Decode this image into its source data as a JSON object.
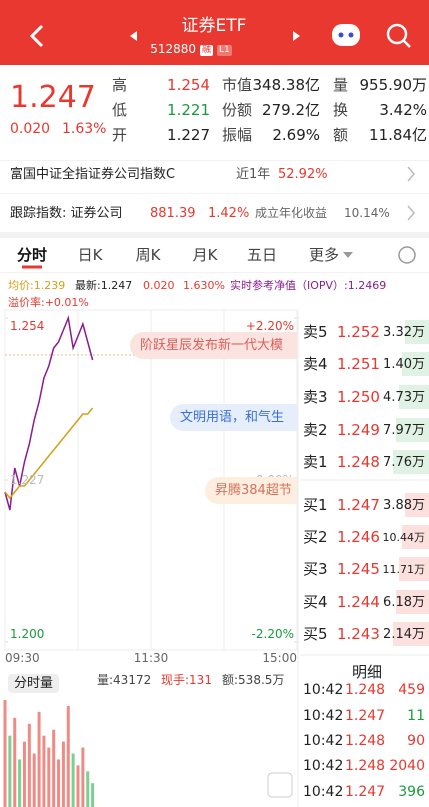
{
  "header": {
    "title": "证券ETF",
    "code": "512880",
    "tags": [
      "融",
      "L1"
    ]
  },
  "quote": {
    "price": "1.247",
    "change": "0.020",
    "change_pct": "1.63%",
    "stats": [
      [
        "高",
        "1.254",
        "市值",
        "348.38亿",
        "量",
        "955.90万"
      ],
      [
        "低",
        "1.221",
        "份额",
        "279.2亿",
        "换",
        "3.42%"
      ],
      [
        "开",
        "1.227",
        "振幅",
        "2.69%",
        "额",
        "11.84亿"
      ]
    ]
  },
  "fund_row": {
    "name": "富国中证全指证券公司指数C",
    "period": "近1年",
    "return": "52.92%"
  },
  "track_row": {
    "label": "跟踪指数: 证券公司",
    "index": "881.39",
    "index_pct": "1.42%",
    "annual_label": "成立年化收益",
    "annual": "10.14%"
  },
  "tabs": [
    "分时",
    "日K",
    "周K",
    "月K",
    "五日",
    "更多"
  ],
  "legend": {
    "avg": "均价:1.239",
    "latest": "最新:1.247",
    "change": "0.020",
    "pct": "1.630%",
    "iopv": "实时参考净值（IOPV）:1.2469",
    "premium": "溢价率:+0.01%"
  },
  "banners": [
    "阶跃星辰发布新一代大模",
    "文明用语，和气生",
    "昇腾384超节"
  ],
  "chart_data": {
    "type": "line",
    "x": [
      0,
      4,
      8,
      12,
      16,
      20,
      24,
      28,
      32,
      36,
      40,
      44,
      48,
      52,
      56,
      60,
      64,
      68,
      72
    ],
    "xlim": [
      0,
      240
    ],
    "xticks": [
      {
        "value": 0,
        "label": "09:30"
      },
      {
        "value": 120,
        "label": "11:30"
      },
      {
        "value": 240,
        "label": "15:00"
      }
    ],
    "ylim": [
      1.2,
      1.254
    ],
    "yticks": [
      {
        "value": 1.254,
        "label": "1.254"
      },
      {
        "value": 1.227,
        "label": "1.227"
      },
      {
        "value": 1.2,
        "label": "1.200"
      }
    ],
    "y2lim": [
      -2.2,
      2.2
    ],
    "y2ticks": [
      {
        "value": 2.2,
        "label": "+2.20%"
      },
      {
        "value": 0,
        "label": "0.00%"
      },
      {
        "value": -2.2,
        "label": "-2.20%"
      }
    ],
    "series": [
      {
        "name": "最新",
        "color": "#8a1c8e",
        "values": [
          1.225,
          1.222,
          1.229,
          1.226,
          1.23,
          1.233,
          1.237,
          1.24,
          1.244,
          1.246,
          1.249,
          1.25,
          1.252,
          1.254,
          1.249,
          1.251,
          1.253,
          1.25,
          1.247
        ]
      },
      {
        "name": "均价",
        "color": "#d4a017",
        "values": [
          1.225,
          1.224,
          1.225,
          1.226,
          1.226,
          1.227,
          1.228,
          1.229,
          1.23,
          1.231,
          1.232,
          1.233,
          1.234,
          1.235,
          1.236,
          1.237,
          1.238,
          1.238,
          1.239
        ]
      }
    ],
    "volume": [
      90,
      60,
      75,
      40,
      55,
      70,
      45,
      80,
      60,
      50,
      65,
      40,
      55,
      85,
      45,
      35,
      50,
      30,
      20
    ]
  },
  "volume_header": {
    "label": "分时量",
    "vol": "量:43172",
    "hand": "现手:131",
    "amount": "额:538.5万"
  },
  "order_book": {
    "sells": [
      [
        "卖5",
        "1.252",
        "3.32万"
      ],
      [
        "卖4",
        "1.251",
        "1.40万"
      ],
      [
        "卖3",
        "1.250",
        "4.73万"
      ],
      [
        "卖2",
        "1.249",
        "7.97万"
      ],
      [
        "卖1",
        "1.248",
        "7.76万"
      ]
    ],
    "buys": [
      [
        "买1",
        "1.247",
        "3.88万"
      ],
      [
        "买2",
        "1.246",
        "10.44万"
      ],
      [
        "买3",
        "1.245",
        "11.71万"
      ],
      [
        "买4",
        "1.244",
        "6.18万"
      ],
      [
        "买5",
        "1.243",
        "2.14万"
      ]
    ]
  },
  "details": {
    "title": "明细",
    "rows": [
      [
        "10:42",
        "1.248",
        "459"
      ],
      [
        "10:42",
        "1.247",
        "11"
      ],
      [
        "10:42",
        "1.248",
        "90"
      ],
      [
        "10:42",
        "1.248",
        "2040"
      ],
      [
        "10:42",
        "1.247",
        "396"
      ]
    ]
  }
}
